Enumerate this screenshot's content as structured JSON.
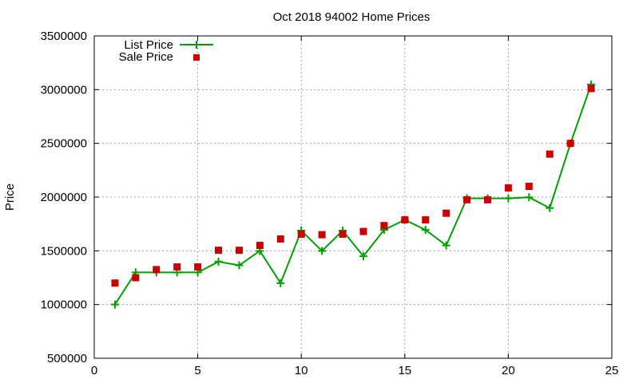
{
  "chart_data": {
    "type": "line",
    "title": "Oct 2018 94002 Home Prices",
    "xlabel": "",
    "ylabel": "Price",
    "xlim": [
      0,
      25
    ],
    "ylim": [
      500000,
      3500000
    ],
    "x_ticks": [
      0,
      5,
      10,
      15,
      20,
      25
    ],
    "y_ticks": [
      500000,
      1000000,
      1500000,
      2000000,
      2500000,
      3000000,
      3500000
    ],
    "grid": true,
    "legend_position": "top-left",
    "x": [
      1,
      2,
      3,
      4,
      5,
      6,
      7,
      8,
      9,
      10,
      11,
      12,
      13,
      14,
      15,
      16,
      17,
      18,
      19,
      20,
      21,
      22,
      23,
      24
    ],
    "series": [
      {
        "name": "List Price",
        "style": "linespoints",
        "marker": "plus",
        "color": "#00a000",
        "values": [
          1000000,
          1299000,
          1299000,
          1299000,
          1299000,
          1399000,
          1365000,
          1499000,
          1199000,
          1688000,
          1499000,
          1688000,
          1450000,
          1695000,
          1788000,
          1695000,
          1550000,
          1988000,
          1988000,
          1988000,
          1998000,
          1898000,
          2498000,
          3048000
        ]
      },
      {
        "name": "Sale Price",
        "style": "points",
        "marker": "square",
        "color": "#cc0000",
        "values": [
          1200000,
          1250000,
          1325000,
          1350000,
          1350000,
          1505000,
          1505000,
          1550000,
          1610000,
          1655000,
          1650000,
          1655000,
          1680000,
          1735000,
          1788000,
          1788000,
          1850000,
          1975000,
          1975000,
          2085000,
          2100000,
          2400000,
          2500000,
          3010000
        ]
      }
    ]
  }
}
